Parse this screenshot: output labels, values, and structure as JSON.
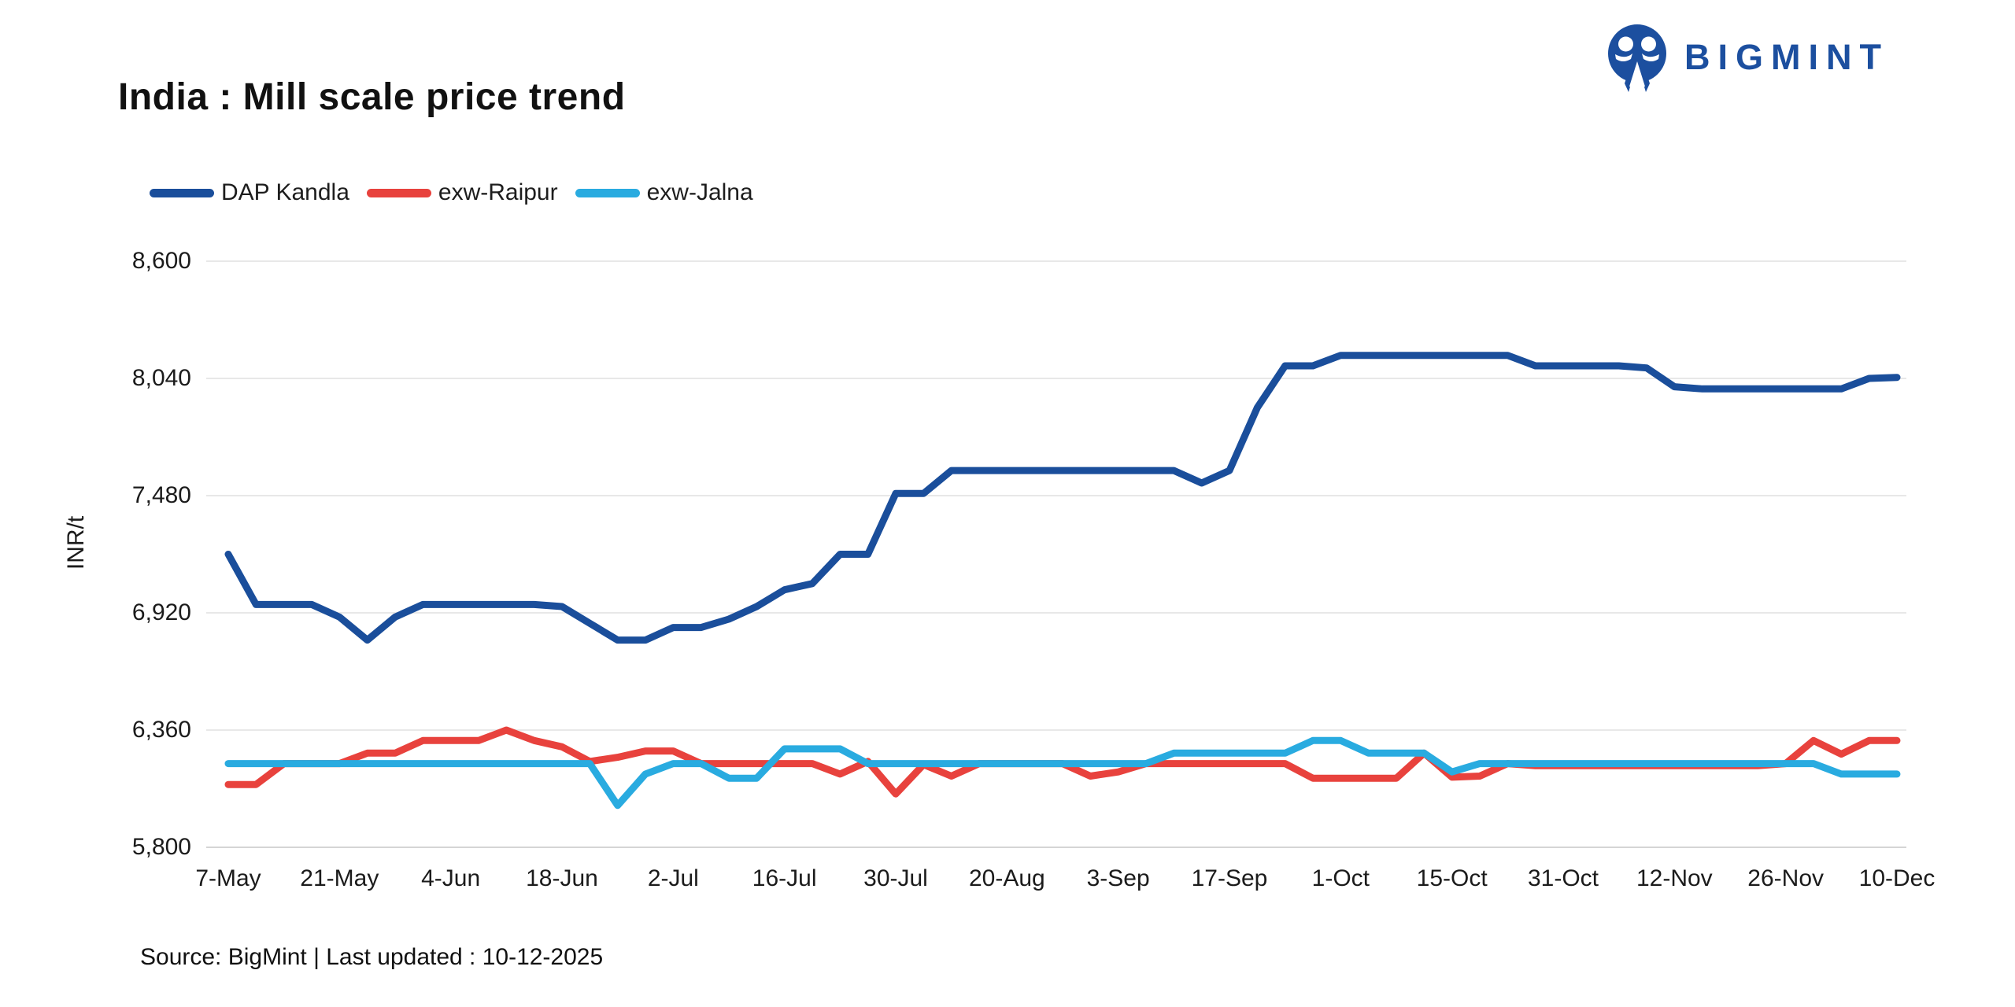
{
  "logo": {
    "text": "BIGMINT",
    "color": "#1c4f9f"
  },
  "chart": {
    "title": "India : Mill scale price trend",
    "ylabel": "INR/t"
  },
  "footer": {
    "source": "Source: BigMint | Last updated : 10-12-2025"
  },
  "chart_data": {
    "type": "line",
    "title": "India : Mill scale price trend",
    "ylabel": "INR/t",
    "ylim": [
      5800,
      8600
    ],
    "y_ticks": [
      8600,
      8040,
      7480,
      6920,
      6360,
      5800
    ],
    "y_tick_labels": [
      "8,600",
      "8,040",
      "7,480",
      "6,920",
      "6,360",
      "5,800"
    ],
    "x_tick_labels": [
      "7-May",
      "21-May",
      "4-Jun",
      "18-Jun",
      "2-Jul",
      "16-Jul",
      "30-Jul",
      "20-Aug",
      "3-Sep",
      "17-Sep",
      "1-Oct",
      "15-Oct",
      "31-Oct",
      "12-Nov",
      "26-Nov",
      "10-Dec"
    ],
    "points_per_tick": 4,
    "grid": "horizontal",
    "legend_position": "top-left",
    "series": [
      {
        "name": "DAP Kandla",
        "color": "#1a4e9b",
        "values": [
          7200,
          6960,
          6960,
          6960,
          6900,
          6790,
          6900,
          6960,
          6960,
          6960,
          6960,
          6960,
          6950,
          6870,
          6790,
          6790,
          6850,
          6850,
          6890,
          6950,
          7030,
          7060,
          7200,
          7200,
          7490,
          7490,
          7600,
          7600,
          7600,
          7600,
          7600,
          7600,
          7600,
          7600,
          7600,
          7540,
          7600,
          7900,
          8100,
          8100,
          8150,
          8150,
          8150,
          8150,
          8150,
          8150,
          8150,
          8100,
          8100,
          8100,
          8100,
          8090,
          8000,
          7990,
          7990,
          7990,
          7990,
          7990,
          7990,
          8040,
          8045
        ]
      },
      {
        "name": "exw-Raipur",
        "color": "#e8423d",
        "values": [
          6100,
          6100,
          6200,
          6200,
          6200,
          6250,
          6250,
          6310,
          6310,
          6310,
          6360,
          6310,
          6280,
          6210,
          6230,
          6260,
          6260,
          6200,
          6200,
          6200,
          6200,
          6200,
          6150,
          6210,
          6055,
          6195,
          6140,
          6200,
          6200,
          6200,
          6200,
          6140,
          6160,
          6200,
          6200,
          6200,
          6200,
          6200,
          6200,
          6130,
          6130,
          6130,
          6130,
          6250,
          6135,
          6140,
          6200,
          6190,
          6190,
          6190,
          6190,
          6190,
          6190,
          6190,
          6190,
          6190,
          6200,
          6310,
          6245,
          6310,
          6310
        ]
      },
      {
        "name": "exw-Jalna",
        "color": "#29abe0",
        "values": [
          6200,
          6200,
          6200,
          6200,
          6200,
          6200,
          6200,
          6200,
          6200,
          6200,
          6200,
          6200,
          6200,
          6200,
          6000,
          6150,
          6200,
          6200,
          6130,
          6130,
          6270,
          6270,
          6270,
          6200,
          6200,
          6200,
          6200,
          6200,
          6200,
          6200,
          6200,
          6200,
          6200,
          6200,
          6250,
          6250,
          6250,
          6250,
          6250,
          6310,
          6310,
          6250,
          6250,
          6250,
          6160,
          6200,
          6200,
          6200,
          6200,
          6200,
          6200,
          6200,
          6200,
          6200,
          6200,
          6200,
          6200,
          6200,
          6150,
          6150,
          6150
        ]
      }
    ]
  }
}
